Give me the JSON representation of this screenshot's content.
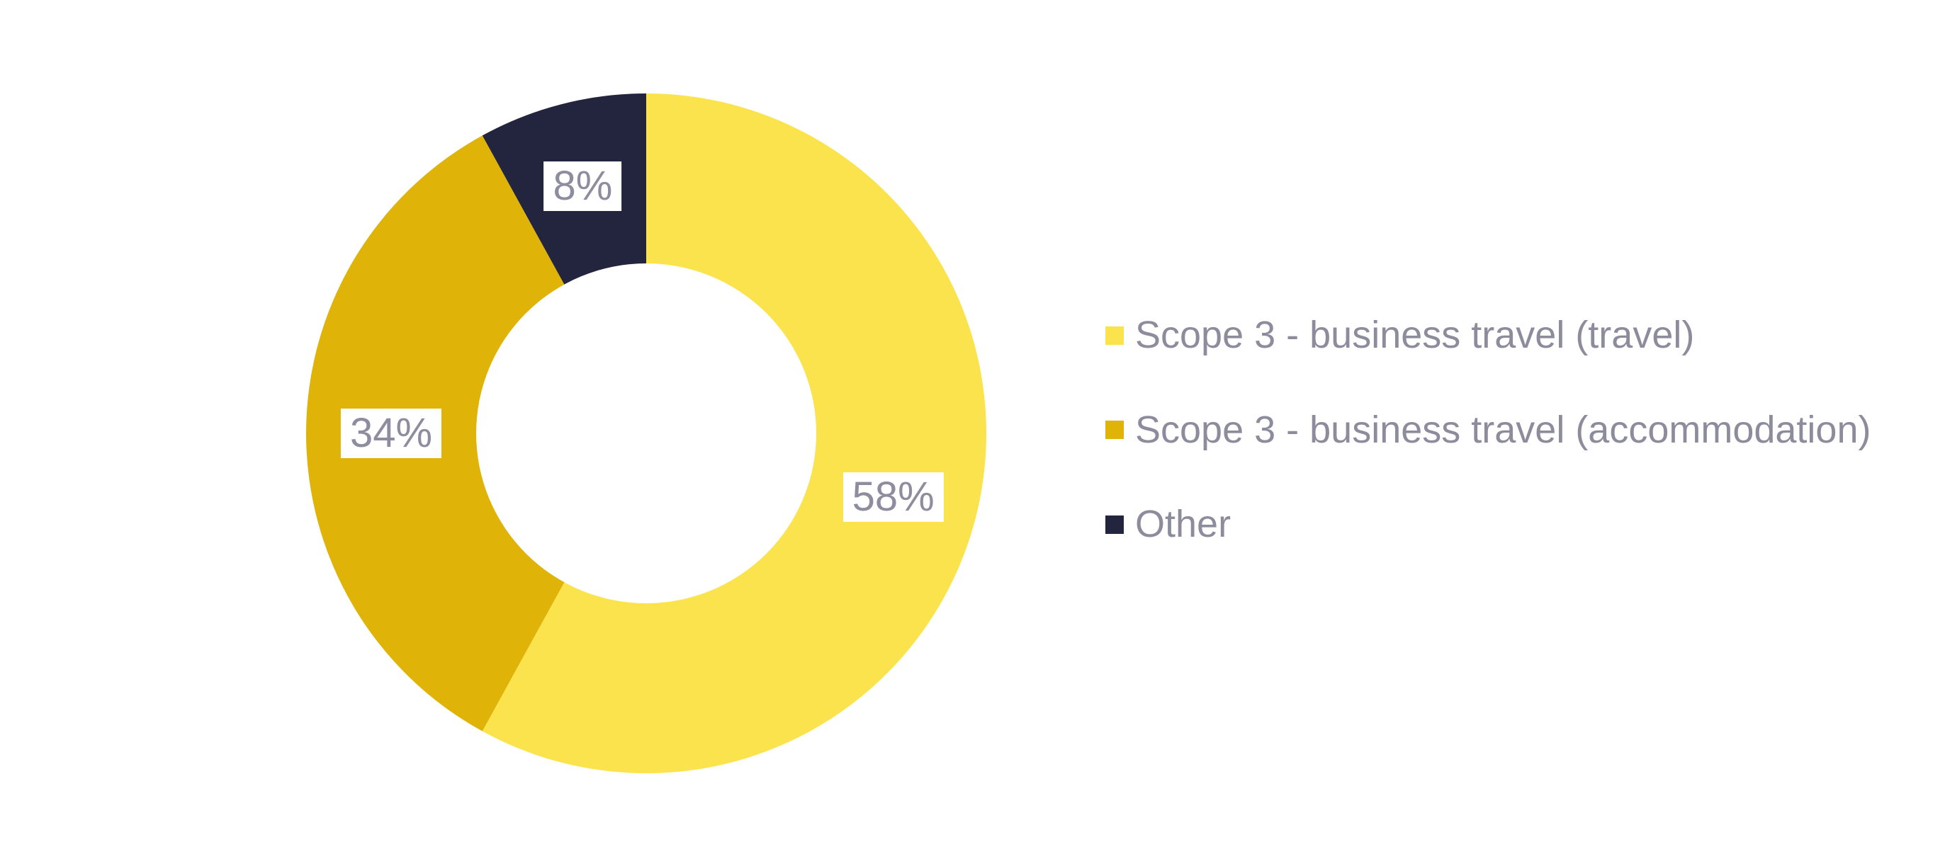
{
  "page": {
    "background": "#FFFFFF"
  },
  "chart_data": {
    "type": "pie",
    "subtype": "donut",
    "title": "",
    "categories": [
      "Scope 3 - business travel (travel)",
      "Scope 3 - business travel (accommodation)",
      "Other"
    ],
    "values": [
      58,
      34,
      8
    ],
    "slice_labels": [
      "58%",
      "34%",
      "8%"
    ],
    "colors": [
      "#FAE34D",
      "#E0B308",
      "#23243D"
    ],
    "start_angle_deg": 0,
    "direction": "clockwise",
    "donut_hole_ratio": 0.5,
    "hole_color": "#FFFFFF",
    "label_style": {
      "background": "#FFFFFF",
      "text_color": "#8D8D9F"
    },
    "legend_position": "right",
    "legend": [
      {
        "label": "Scope 3 - business travel (travel)",
        "color": "#FAE34D"
      },
      {
        "label": "Scope 3 - business travel (accommodation)",
        "color": "#E0B308"
      },
      {
        "label": "Other",
        "color": "#23243D"
      }
    ]
  }
}
